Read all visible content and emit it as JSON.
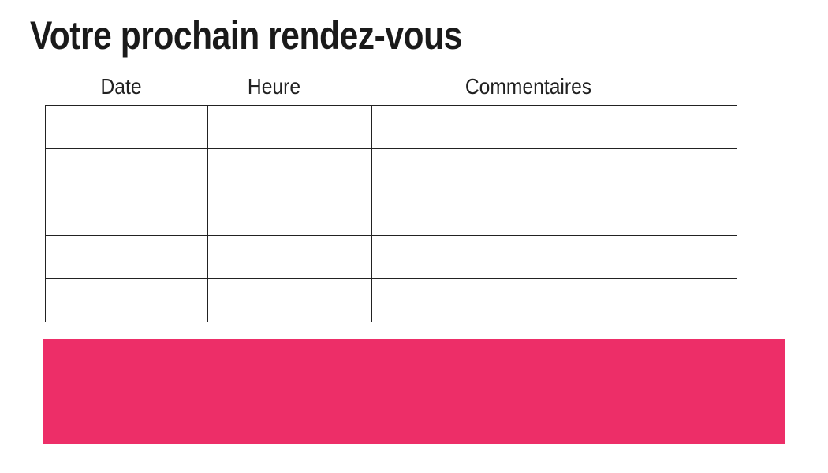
{
  "page": {
    "title": "Votre prochain rendez-vous",
    "background_color": "#ffffff"
  },
  "table": {
    "columns": [
      {
        "label": "Date"
      },
      {
        "label": "Heure"
      },
      {
        "label": "Commentaires"
      }
    ],
    "rows": [
      [
        "",
        "",
        ""
      ],
      [
        "",
        "",
        ""
      ],
      [
        "",
        "",
        ""
      ],
      [
        "",
        "",
        ""
      ],
      [
        "",
        "",
        ""
      ]
    ],
    "border_color": "#222222"
  },
  "banner": {
    "color": "#ED2E68"
  },
  "text_color": "#1a1a1a"
}
